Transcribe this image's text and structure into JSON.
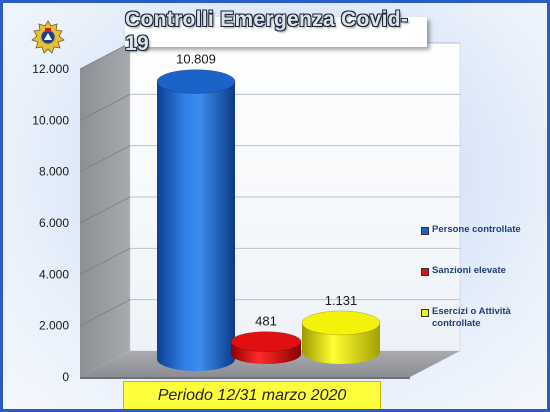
{
  "chart_data": {
    "type": "bar",
    "title": "Controlli Emergenza Covid-19",
    "categories": [
      "Persone controllate",
      "Sanzioni elevate",
      "Esercizi o Attività controllate"
    ],
    "series": [
      {
        "values": [
          10809,
          481,
          1131
        ]
      }
    ],
    "value_labels": [
      "10.809",
      "481",
      "1.131"
    ],
    "colors": [
      "#1b63c9",
      "#e01010",
      "#f2f20a"
    ],
    "ylim": [
      0,
      12000
    ],
    "yticks": [
      0,
      2000,
      4000,
      6000,
      8000,
      10000,
      12000
    ],
    "ytick_labels": [
      "0",
      "2.000",
      "4.000",
      "6.000",
      "8.000",
      "10.000",
      "12.000"
    ],
    "legend": {
      "position": "right",
      "items": [
        "Persone controllate",
        "Sanzioni elevate",
        "Esercizi o Attività controllate"
      ]
    },
    "grid": true,
    "style": "3d-cylinder"
  },
  "footer": {
    "period": "Periodo 12/31 marzo 2020"
  },
  "logo": {
    "icon": "police-emblem-icon"
  }
}
